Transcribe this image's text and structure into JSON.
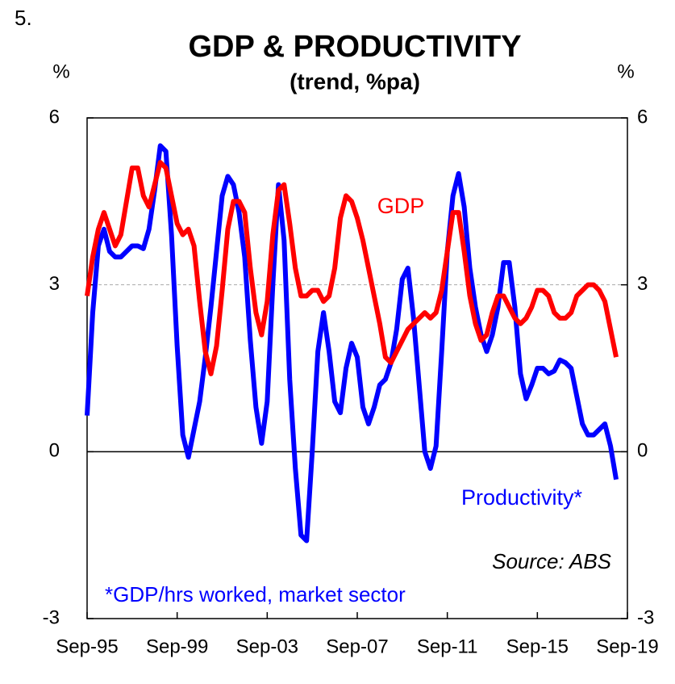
{
  "chart_data": {
    "type": "line",
    "figure_number": "5.",
    "title": "GDP & PRODUCTIVITY",
    "subtitle": "(trend, %pa)",
    "y_unit": "%",
    "y2_unit": "%",
    "categories": [
      "Sep-95",
      null,
      null,
      null,
      null,
      null,
      null,
      null,
      null,
      null,
      null,
      null,
      null,
      null,
      null,
      null,
      "Sep-99",
      null,
      null,
      null,
      null,
      null,
      null,
      null,
      null,
      null,
      null,
      null,
      null,
      null,
      null,
      null,
      "Sep-03",
      null,
      null,
      null,
      null,
      null,
      null,
      null,
      null,
      null,
      null,
      null,
      null,
      null,
      null,
      null,
      "Sep-07",
      null,
      null,
      null,
      null,
      null,
      null,
      null,
      null,
      null,
      null,
      null,
      null,
      null,
      null,
      null,
      "Sep-11",
      null,
      null,
      null,
      null,
      null,
      null,
      null,
      null,
      null,
      null,
      null,
      null,
      null,
      null,
      null,
      "Sep-15",
      null,
      null,
      null,
      null,
      null,
      null,
      null,
      null,
      null,
      null,
      null,
      null,
      null,
      null,
      null,
      "Sep-19"
    ],
    "series": [
      {
        "name": "GDP",
        "color": "#ff0000",
        "values": [
          2.8,
          3.5,
          4.0,
          4.3,
          4.0,
          3.7,
          3.9,
          4.5,
          5.1,
          5.1,
          4.6,
          4.4,
          4.8,
          5.2,
          5.1,
          4.6,
          4.1,
          3.9,
          4.0,
          3.7,
          2.7,
          1.8,
          1.4,
          1.9,
          2.9,
          4.0,
          4.5,
          4.5,
          4.3,
          3.3,
          2.5,
          2.1,
          2.7,
          3.9,
          4.7,
          4.8,
          4.1,
          3.3,
          2.8,
          2.8,
          2.9,
          2.9,
          2.7,
          2.8,
          3.3,
          4.2,
          4.6,
          4.5,
          4.2,
          3.8,
          3.3,
          2.8,
          2.3,
          1.7,
          1.6,
          1.8,
          2.0,
          2.2,
          2.3,
          2.4,
          2.5,
          2.4,
          2.5,
          2.9,
          3.6,
          4.3,
          4.3,
          3.6,
          2.8,
          2.3,
          2.0,
          2.1,
          2.5,
          2.8,
          2.8,
          2.6,
          2.4,
          2.3,
          2.4,
          2.6,
          2.9,
          2.9,
          2.8,
          2.5,
          2.4,
          2.4,
          2.5,
          2.8,
          2.9,
          3.0,
          3.0,
          2.9,
          2.7,
          2.2,
          1.7,
          null,
          null
        ]
      },
      {
        "name": "Productivity*",
        "color": "#0000ff",
        "values": [
          0.65,
          2.5,
          3.7,
          4.0,
          3.6,
          3.5,
          3.5,
          3.6,
          3.7,
          3.7,
          3.65,
          4.0,
          4.7,
          5.5,
          5.4,
          3.9,
          1.9,
          0.3,
          -0.1,
          0.4,
          0.9,
          1.7,
          2.6,
          3.6,
          4.6,
          4.95,
          4.8,
          4.3,
          3.5,
          2.0,
          0.8,
          0.15,
          0.9,
          3.0,
          4.8,
          3.8,
          1.3,
          -0.3,
          -1.5,
          -1.6,
          0.0,
          1.8,
          2.5,
          1.8,
          0.9,
          0.7,
          1.5,
          1.95,
          1.7,
          0.8,
          0.5,
          0.8,
          1.2,
          1.3,
          1.6,
          2.2,
          3.1,
          3.3,
          2.4,
          1.2,
          0.0,
          -0.3,
          0.1,
          1.8,
          3.6,
          4.6,
          5.0,
          4.4,
          3.3,
          2.6,
          2.1,
          1.8,
          2.1,
          2.6,
          3.4,
          3.4,
          2.6,
          1.4,
          0.95,
          1.2,
          1.5,
          1.5,
          1.4,
          1.45,
          1.65,
          1.6,
          1.5,
          1.0,
          0.5,
          0.3,
          0.3,
          0.4,
          0.5,
          0.1,
          -0.5,
          null,
          null
        ]
      }
    ],
    "ylim": [
      -3,
      6
    ],
    "yticks": [
      6,
      3,
      0,
      -3
    ],
    "y2lim": [
      -3,
      6
    ],
    "y2ticks": [
      6,
      3,
      0,
      -3
    ],
    "grid": true,
    "annotations": [
      {
        "text": "Source: ABS",
        "color": "#000000"
      },
      {
        "text": "*GDP/hrs worked, market sector",
        "color": "#0000ff"
      }
    ]
  }
}
